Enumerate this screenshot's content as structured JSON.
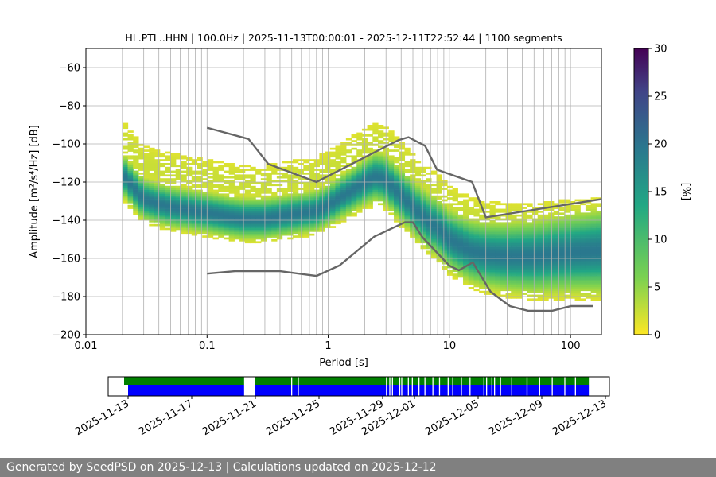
{
  "chart_data": [
    {
      "type": "heatmap",
      "title": "HL.PTL..HHN | 100.0Hz | 2025-11-13T00:00:01 - 2025-12-11T22:52:44 | 1100 segments",
      "xlabel": "Period [s]",
      "ylabel": "Amplitude [m²/s⁴/Hz] [dB]",
      "x_scale": "log",
      "xlim": [
        0.01,
        180
      ],
      "ylim": [
        -200,
        -50
      ],
      "x_ticks": [
        0.01,
        0.1,
        1,
        10,
        100
      ],
      "x_tick_labels": [
        "0.01",
        "0.1",
        "1",
        "10",
        "100"
      ],
      "y_ticks": [
        -200,
        -180,
        -160,
        -140,
        -120,
        -100,
        -80,
        -60
      ],
      "grid": true,
      "colormap": "viridis_r",
      "colorbar": {
        "label": "[%]",
        "range": [
          0,
          30
        ],
        "ticks": [
          0,
          5,
          10,
          15,
          20,
          25,
          30
        ]
      },
      "period_range_data": [
        0.02,
        180
      ],
      "mode_curve": {
        "x": [
          0.02,
          0.03,
          0.05,
          0.1,
          0.15,
          0.2,
          0.3,
          0.5,
          0.8,
          1,
          1.5,
          2,
          2.5,
          3,
          4,
          5,
          6,
          8,
          10,
          15,
          20,
          30,
          50,
          100,
          180
        ],
        "y": [
          -116,
          -129,
          -133,
          -136,
          -138,
          -139,
          -139,
          -137,
          -135,
          -132,
          -125,
          -120,
          -117,
          -119,
          -127,
          -133,
          -138,
          -144,
          -150,
          -156,
          -158,
          -159,
          -159,
          -157,
          -156
        ]
      },
      "new_high_noise_model": {
        "x": [
          0.1,
          0.22,
          0.32,
          0.8,
          3.8,
          4.6,
          6.3,
          7.9,
          15.4,
          20,
          354.8
        ],
        "y": [
          -91.5,
          -97.4,
          -110.5,
          -120.0,
          -98.0,
          -96.5,
          -101.0,
          -113.5,
          -120.0,
          -138.5,
          -126.0
        ]
      },
      "new_low_noise_model": {
        "x": [
          0.1,
          0.17,
          0.4,
          0.8,
          1.24,
          2.4,
          4.3,
          5,
          6,
          10,
          12,
          15.6,
          21.9,
          31.6,
          45,
          70,
          101,
          154
        ],
        "y": [
          -168.0,
          -166.7,
          -166.7,
          -169.2,
          -163.7,
          -148.6,
          -141.1,
          -141.1,
          -149.0,
          -163.8,
          -166.2,
          -162.1,
          -177.5,
          -185.0,
          -187.5,
          -187.5,
          -185.0,
          -185.0
        ]
      }
    },
    {
      "type": "timeline",
      "x_tick_labels": [
        "2025-11-13",
        "2025-11-17",
        "2025-11-21",
        "2025-11-25",
        "2025-11-29",
        "2025-12-01",
        "2025-12-05",
        "2025-12-09",
        "2025-12-13"
      ],
      "x_tick_dates": [
        "2025-11-13",
        "2025-11-17",
        "2025-11-21",
        "2025-11-25",
        "2025-11-29",
        "2025-12-01",
        "2025-12-05",
        "2025-12-09",
        "2025-12-13"
      ],
      "xlim": [
        "2025-11-11T18:00",
        "2025-12-13T06:00"
      ],
      "available_color": "#008000",
      "used_color": "#0000ff",
      "available_ranges": [
        [
          "2025-11-12T18:00",
          "2025-11-20T07:00"
        ],
        [
          "2025-11-21T00:00",
          "2025-12-11T23:00"
        ]
      ],
      "used_ranges": [
        [
          "2025-11-13T00:00",
          "2025-11-20T07:00"
        ],
        [
          "2025-11-21T00:00",
          "2025-12-11T23:00"
        ]
      ],
      "gaps": [
        "2025-11-23T06:00",
        "2025-11-23T16:00",
        "2025-11-29T05:00",
        "2025-11-29T10:00",
        "2025-11-29T14:00",
        "2025-11-30T01:00",
        "2025-11-30T04:00",
        "2025-11-30T14:00",
        "2025-11-30T20:00",
        "2025-12-01T06:00",
        "2025-12-01T15:00",
        "2025-12-02T03:00",
        "2025-12-02T13:00",
        "2025-12-03T02:00",
        "2025-12-03T09:00",
        "2025-12-03T22:00",
        "2025-12-04T11:00",
        "2025-12-05T08:00",
        "2025-12-05T12:00",
        "2025-12-05T20:00",
        "2025-12-06T00:00",
        "2025-12-06T09:00",
        "2025-12-07T02:00",
        "2025-12-08T01:00",
        "2025-12-08T20:00",
        "2025-12-09T15:00",
        "2025-12-10T10:00",
        "2025-12-11T02:00"
      ]
    }
  ],
  "footer": {
    "text": "Generated by SeedPSD on 2025-12-13 | Calculations updated on 2025-12-12"
  }
}
